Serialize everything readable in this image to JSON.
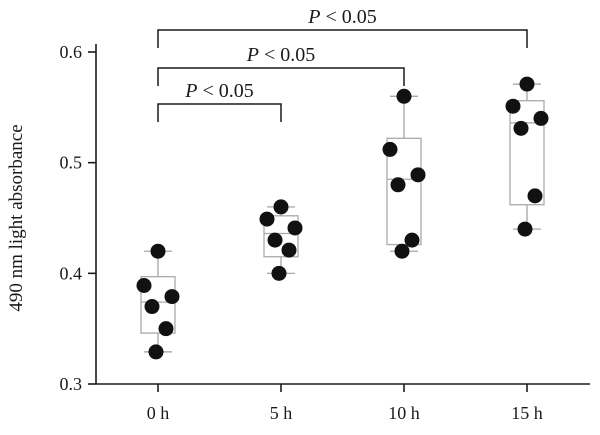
{
  "chart_data": {
    "type": "box",
    "title": "",
    "xlabel": "",
    "ylabel": "490 nm light absorbance",
    "ylim": [
      0.3,
      0.6
    ],
    "yticks": [
      0.3,
      0.4,
      0.5,
      0.6
    ],
    "yticklabels": [
      "0.3",
      "0.4",
      "0.5",
      "0.6"
    ],
    "categories": [
      "0 h",
      "5 h",
      "10 h",
      "15 h"
    ],
    "groups": [
      {
        "category": "0 h",
        "points": [
          0.42,
          0.389,
          0.379,
          0.37,
          0.35,
          0.329
        ],
        "box": {
          "min": 0.329,
          "q1": 0.346,
          "median": 0.374,
          "q3": 0.397,
          "max": 0.42
        }
      },
      {
        "category": "5 h",
        "points": [
          0.46,
          0.449,
          0.441,
          0.43,
          0.421,
          0.4
        ],
        "box": {
          "min": 0.4,
          "q1": 0.415,
          "median": 0.436,
          "q3": 0.452,
          "max": 0.46
        }
      },
      {
        "category": "10 h",
        "points": [
          0.56,
          0.512,
          0.489,
          0.48,
          0.43,
          0.42
        ],
        "box": {
          "min": 0.42,
          "q1": 0.426,
          "median": 0.485,
          "q3": 0.522,
          "max": 0.56
        }
      },
      {
        "category": "15 h",
        "points": [
          0.571,
          0.551,
          0.54,
          0.531,
          0.47,
          0.44
        ],
        "box": {
          "min": 0.44,
          "q1": 0.462,
          "median": 0.536,
          "q3": 0.556,
          "max": 0.571
        }
      }
    ],
    "comparisons": [
      {
        "from": "0 h",
        "to": "5 h",
        "label": "P < 0.05"
      },
      {
        "from": "0 h",
        "to": "10 h",
        "label": "P < 0.05"
      },
      {
        "from": "0 h",
        "to": "15 h",
        "label": "P < 0.05"
      }
    ],
    "colors": {
      "points": "#111111",
      "box_stroke": "#a9a9b0",
      "whisker_stroke": "#9c9ca4",
      "axis": "#1a1a1a",
      "bracket": "#1a1a1a"
    }
  }
}
